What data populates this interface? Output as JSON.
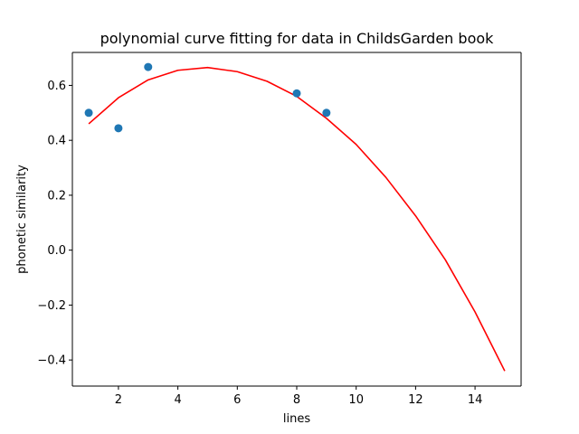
{
  "chart_data": {
    "type": "scatter",
    "title": "polynomial curve fitting for data in ChildsGarden book",
    "xlabel": "lines",
    "ylabel": "phonetic similarity",
    "xlim": [
      0.45,
      15.55
    ],
    "ylim": [
      -0.495,
      0.72
    ],
    "x_ticks": [
      2,
      4,
      6,
      8,
      10,
      12,
      14
    ],
    "y_ticks": [
      -0.4,
      -0.2,
      0.0,
      0.2,
      0.4,
      0.6
    ],
    "x_tick_labels": [
      "2",
      "4",
      "6",
      "8",
      "10",
      "12",
      "14"
    ],
    "y_tick_labels": [
      "−0.4",
      "−0.2",
      "0.0",
      "0.2",
      "0.4",
      "0.6"
    ],
    "grid": false,
    "series": [
      {
        "kind": "scatter",
        "color": "#1f77b4",
        "x": [
          1,
          2,
          3,
          8,
          9
        ],
        "y": [
          0.5,
          0.444,
          0.667,
          0.571,
          0.5
        ]
      },
      {
        "kind": "line",
        "color": "#ff0000",
        "x": [
          1,
          2,
          3,
          4,
          5,
          6,
          7,
          8,
          9,
          10,
          11,
          12,
          13,
          14,
          15
        ],
        "y": [
          0.46,
          0.555,
          0.62,
          0.655,
          0.665,
          0.65,
          0.615,
          0.56,
          0.48,
          0.385,
          0.265,
          0.125,
          -0.035,
          -0.225,
          -0.44
        ]
      }
    ]
  }
}
